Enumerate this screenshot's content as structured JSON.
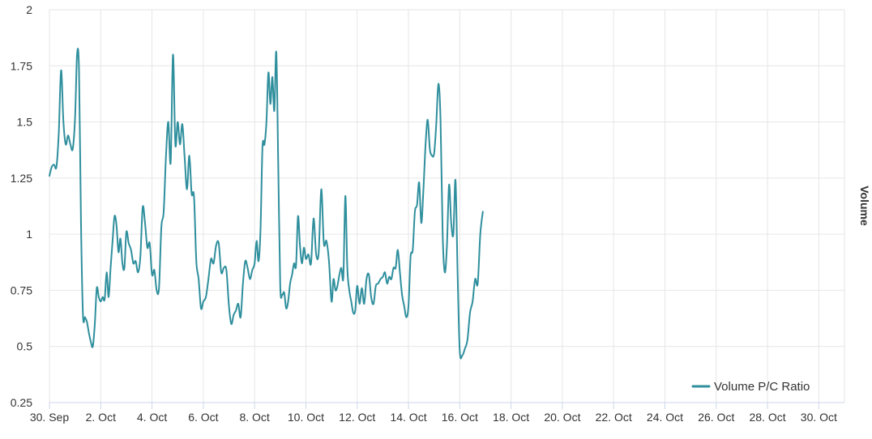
{
  "chart_data": {
    "type": "line",
    "ylim": [
      0.25,
      2
    ],
    "yticks": [
      "0.25",
      "0.5",
      "0.75",
      "1",
      "1.25",
      "1.5",
      "1.75",
      "2"
    ],
    "xlim": [
      "2023-09-30",
      "2023-10-31"
    ],
    "xticks": [
      "30. Sep",
      "2. Oct",
      "4. Oct",
      "6. Oct",
      "8. Oct",
      "10. Oct",
      "12. Oct",
      "14. Oct",
      "16. Oct",
      "18. Oct",
      "20. Oct",
      "22. Oct",
      "24. Oct",
      "26. Oct",
      "28. Oct",
      "30. Oct"
    ],
    "ylabel_right": "Volume",
    "grid": true,
    "legend_position": "bottom-right",
    "series": [
      {
        "name": "Volume P/C Ratio",
        "color": "#2f8f9d",
        "points": [
          [
            "09-30",
            1.26
          ],
          [
            "09-30",
            1.3
          ],
          [
            "09-30",
            1.31
          ],
          [
            "09-30",
            1.3
          ],
          [
            "09-30",
            1.45
          ],
          [
            "09-30",
            1.73
          ],
          [
            "09-30",
            1.5
          ],
          [
            "09-30",
            1.4
          ],
          [
            "09-30",
            1.44
          ],
          [
            "09-30",
            1.4
          ],
          [
            "09-30",
            1.38
          ],
          [
            "10-01",
            1.52
          ],
          [
            "10-01",
            1.8
          ],
          [
            "10-01",
            1.73
          ],
          [
            "10-01",
            1.05
          ],
          [
            "10-01",
            0.64
          ],
          [
            "10-01",
            0.63
          ],
          [
            "10-01",
            0.61
          ],
          [
            "10-01",
            0.56
          ],
          [
            "10-01",
            0.52
          ],
          [
            "10-01",
            0.5
          ],
          [
            "10-01",
            0.6
          ],
          [
            "10-01",
            0.76
          ],
          [
            "10-01",
            0.72
          ],
          [
            "10-02",
            0.7
          ],
          [
            "10-02",
            0.72
          ],
          [
            "10-02",
            0.71
          ],
          [
            "10-02",
            0.83
          ],
          [
            "10-02",
            0.72
          ],
          [
            "10-02",
            0.85
          ],
          [
            "10-02",
            0.97
          ],
          [
            "10-02",
            1.08
          ],
          [
            "10-02",
            1.04
          ],
          [
            "10-02",
            0.92
          ],
          [
            "10-02",
            0.98
          ],
          [
            "10-02",
            0.87
          ],
          [
            "10-02",
            0.85
          ],
          [
            "10-03",
            1.01
          ],
          [
            "10-03",
            0.96
          ],
          [
            "10-03",
            0.93
          ],
          [
            "10-03",
            0.87
          ],
          [
            "10-03",
            0.88
          ],
          [
            "10-03",
            0.83
          ],
          [
            "10-03",
            0.9
          ],
          [
            "10-03",
            1.12
          ],
          [
            "10-03",
            1.05
          ],
          [
            "10-03",
            0.94
          ],
          [
            "10-03",
            0.96
          ],
          [
            "10-04",
            0.82
          ],
          [
            "10-04",
            0.84
          ],
          [
            "10-04",
            0.75
          ],
          [
            "10-04",
            0.76
          ],
          [
            "10-04",
            1.03
          ],
          [
            "10-04",
            1.1
          ],
          [
            "10-04",
            1.35
          ],
          [
            "10-04",
            1.5
          ],
          [
            "10-04",
            1.32
          ],
          [
            "10-04",
            1.8
          ],
          [
            "10-04",
            1.4
          ],
          [
            "10-05",
            1.5
          ],
          [
            "10-05",
            1.4
          ],
          [
            "10-05",
            1.49
          ],
          [
            "10-05",
            1.34
          ],
          [
            "10-05",
            1.2
          ],
          [
            "10-05",
            1.35
          ],
          [
            "10-05",
            1.18
          ],
          [
            "10-05",
            1.17
          ],
          [
            "10-05",
            0.88
          ],
          [
            "10-05",
            0.8
          ],
          [
            "10-05",
            0.67
          ],
          [
            "10-06",
            0.7
          ],
          [
            "10-06",
            0.72
          ],
          [
            "10-06",
            0.8
          ],
          [
            "10-06",
            0.89
          ],
          [
            "10-06",
            0.87
          ],
          [
            "10-06",
            0.95
          ],
          [
            "10-06",
            0.96
          ],
          [
            "10-06",
            0.83
          ],
          [
            "10-06",
            0.85
          ],
          [
            "10-06",
            0.84
          ],
          [
            "10-07",
            0.68
          ],
          [
            "10-07",
            0.6
          ],
          [
            "10-07",
            0.64
          ],
          [
            "10-07",
            0.66
          ],
          [
            "10-07",
            0.69
          ],
          [
            "10-07",
            0.63
          ],
          [
            "10-07",
            0.78
          ],
          [
            "10-07",
            0.88
          ],
          [
            "10-07",
            0.85
          ],
          [
            "10-07",
            0.8
          ],
          [
            "10-07",
            0.84
          ],
          [
            "10-08",
            0.87
          ],
          [
            "10-08",
            0.97
          ],
          [
            "10-08",
            0.88
          ],
          [
            "10-08",
            1.02
          ],
          [
            "10-08",
            1.39
          ],
          [
            "10-08",
            1.4
          ],
          [
            "10-08",
            1.5
          ],
          [
            "10-08",
            1.72
          ],
          [
            "10-08",
            1.58
          ],
          [
            "10-08",
            1.7
          ],
          [
            "10-08",
            1.55
          ],
          [
            "10-08",
            1.81
          ],
          [
            "10-08",
            1.3
          ],
          [
            "10-09",
            0.77
          ],
          [
            "10-09",
            0.73
          ],
          [
            "10-09",
            0.74
          ],
          [
            "10-09",
            0.67
          ],
          [
            "10-09",
            0.7
          ],
          [
            "10-09",
            0.78
          ],
          [
            "10-09",
            0.82
          ],
          [
            "10-09",
            0.87
          ],
          [
            "10-09",
            0.86
          ],
          [
            "10-09",
            1.08
          ],
          [
            "10-09",
            0.95
          ],
          [
            "10-09",
            0.87
          ],
          [
            "10-09",
            0.94
          ],
          [
            "10-10",
            0.89
          ],
          [
            "10-10",
            0.91
          ],
          [
            "10-10",
            0.87
          ],
          [
            "10-10",
            1.07
          ],
          [
            "10-10",
            0.91
          ],
          [
            "10-10",
            0.92
          ],
          [
            "10-10",
            1.2
          ],
          [
            "10-10",
            0.96
          ],
          [
            "10-10",
            0.97
          ],
          [
            "10-10",
            0.88
          ],
          [
            "10-11",
            0.7
          ],
          [
            "10-11",
            0.8
          ],
          [
            "10-11",
            0.75
          ],
          [
            "10-11",
            0.77
          ],
          [
            "10-11",
            0.82
          ],
          [
            "10-11",
            0.85
          ],
          [
            "10-11",
            0.81
          ],
          [
            "10-11",
            1.17
          ],
          [
            "10-11",
            0.85
          ],
          [
            "10-11",
            0.75
          ],
          [
            "10-11",
            0.7
          ],
          [
            "10-11",
            0.65
          ],
          [
            "10-11",
            0.66
          ],
          [
            "10-12",
            0.77
          ],
          [
            "10-12",
            0.69
          ],
          [
            "10-12",
            0.76
          ],
          [
            "10-12",
            0.69
          ],
          [
            "10-12",
            0.8
          ],
          [
            "10-12",
            0.82
          ],
          [
            "10-12",
            0.72
          ],
          [
            "10-12",
            0.69
          ],
          [
            "10-12",
            0.77
          ],
          [
            "10-12",
            0.78
          ],
          [
            "10-12",
            0.8
          ],
          [
            "10-13",
            0.81
          ],
          [
            "10-13",
            0.83
          ],
          [
            "10-13",
            0.78
          ],
          [
            "10-13",
            0.81
          ],
          [
            "10-13",
            0.8
          ],
          [
            "10-13",
            0.85
          ],
          [
            "10-13",
            0.85
          ],
          [
            "10-13",
            0.93
          ],
          [
            "10-13",
            0.83
          ],
          [
            "10-13",
            0.73
          ],
          [
            "10-13",
            0.68
          ],
          [
            "10-13",
            0.63
          ],
          [
            "10-14",
            0.68
          ],
          [
            "10-14",
            0.9
          ],
          [
            "10-14",
            0.93
          ],
          [
            "10-14",
            1.1
          ],
          [
            "10-14",
            1.13
          ],
          [
            "10-14",
            1.23
          ],
          [
            "10-14",
            1.05
          ],
          [
            "10-14",
            1.2
          ],
          [
            "10-14",
            1.4
          ],
          [
            "10-14",
            1.51
          ],
          [
            "10-14",
            1.38
          ],
          [
            "10-14",
            1.35
          ],
          [
            "10-15",
            1.36
          ],
          [
            "10-15",
            1.49
          ],
          [
            "10-15",
            1.67
          ],
          [
            "10-15",
            1.51
          ],
          [
            "10-15",
            1.0
          ],
          [
            "10-15",
            0.83
          ],
          [
            "10-15",
            0.95
          ],
          [
            "10-15",
            1.22
          ],
          [
            "10-15",
            1.05
          ],
          [
            "10-15",
            1.0
          ],
          [
            "10-15",
            1.24
          ],
          [
            "10-15",
            0.82
          ],
          [
            "10-16",
            0.48
          ],
          [
            "10-16",
            0.46
          ],
          [
            "10-16",
            0.49
          ],
          [
            "10-16",
            0.53
          ],
          [
            "10-16",
            0.65
          ],
          [
            "10-16",
            0.7
          ],
          [
            "10-16",
            0.8
          ],
          [
            "10-16",
            0.78
          ],
          [
            "10-16",
            1.0
          ],
          [
            "10-16",
            1.1
          ]
        ]
      }
    ]
  }
}
